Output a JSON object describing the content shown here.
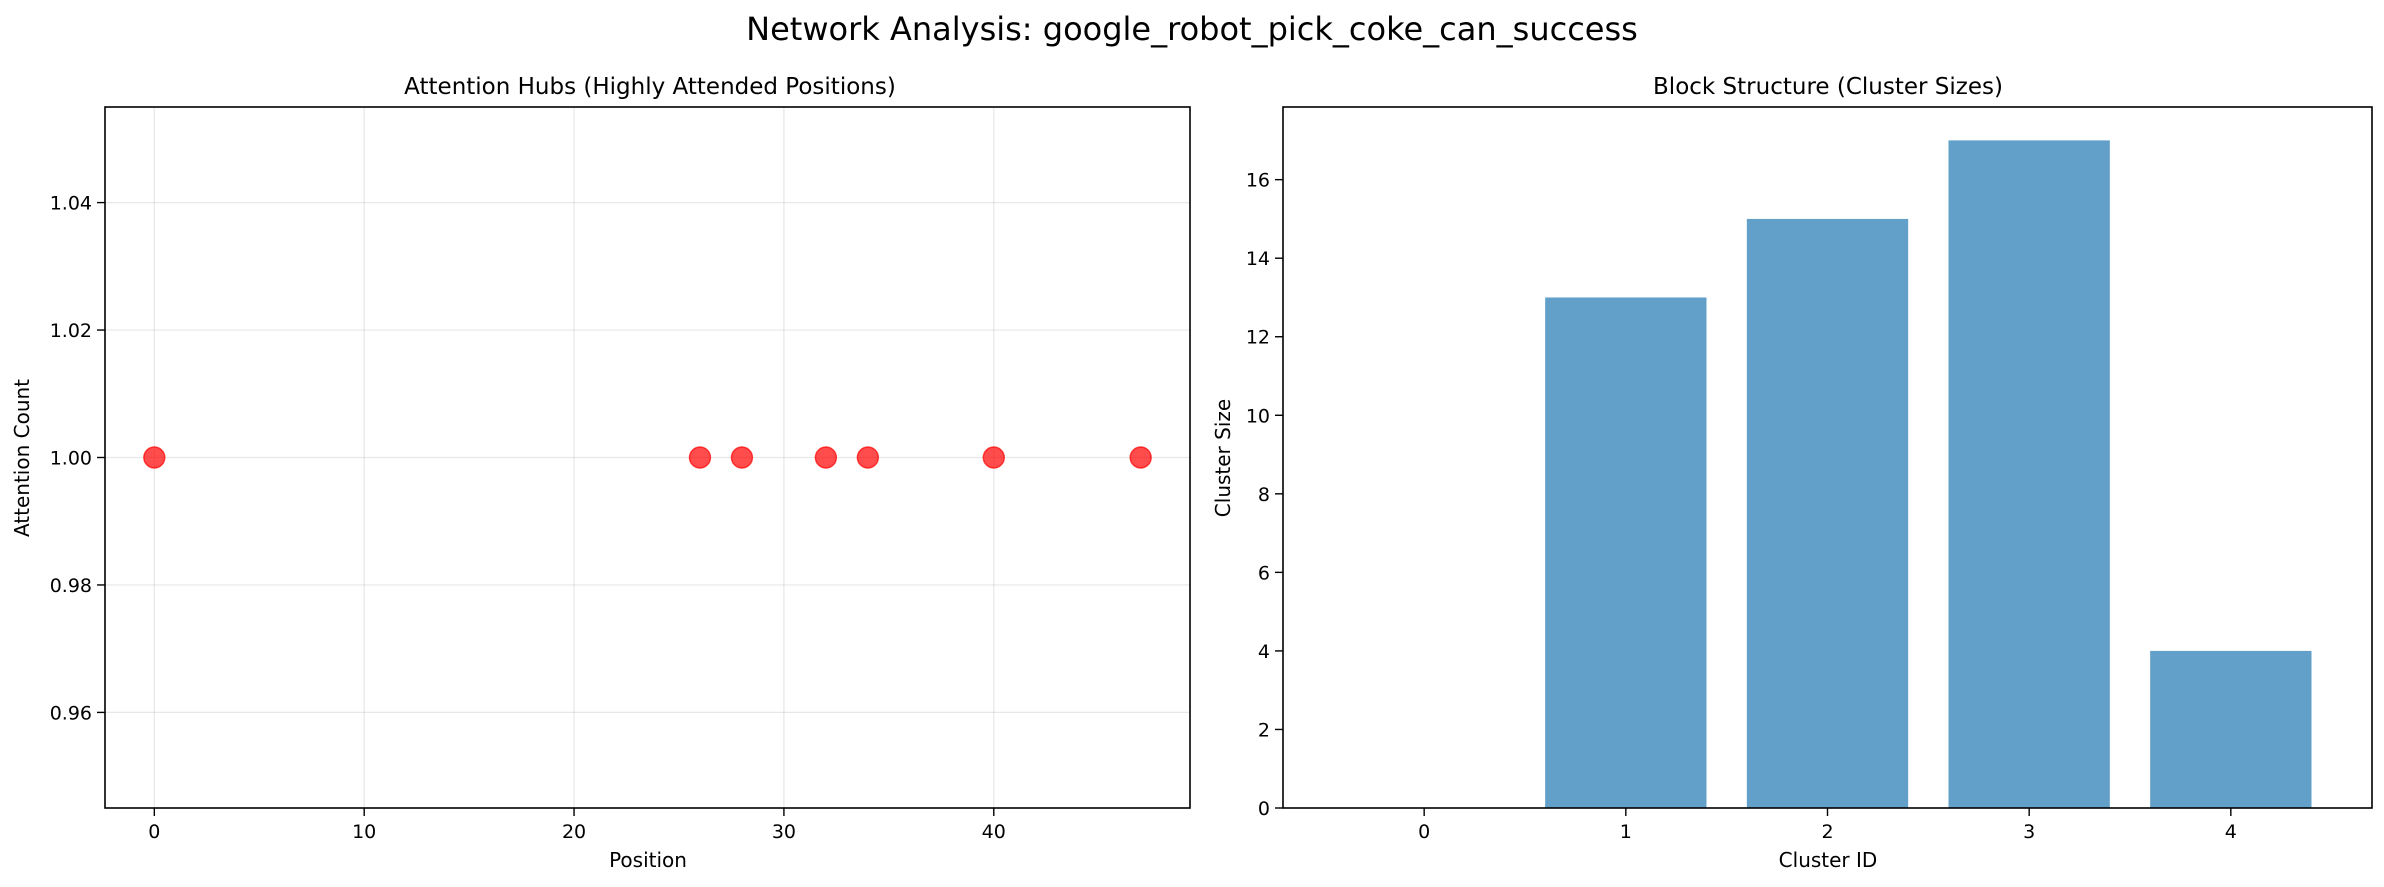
{
  "figure": {
    "suptitle": "Network Analysis: google_robot_pick_coke_can_success"
  },
  "chart_data": [
    {
      "type": "scatter",
      "title": "Attention Hubs (Highly Attended Positions)",
      "xlabel": "Position",
      "ylabel": "Attention Count",
      "xlim": [
        -2.35,
        49.35
      ],
      "ylim": [
        0.945,
        1.055
      ],
      "xticks": [
        0,
        10,
        20,
        30,
        40
      ],
      "xtick_labels": [
        "0",
        "10",
        "20",
        "30",
        "40"
      ],
      "yticks": [
        0.96,
        0.98,
        1.0,
        1.02,
        1.04
      ],
      "ytick_labels": [
        "0.96",
        "0.98",
        "1.00",
        "1.02",
        "1.04"
      ],
      "grid": true,
      "marker_color": "#ff0000",
      "points": [
        {
          "x": 0,
          "y": 1.0
        },
        {
          "x": 26,
          "y": 1.0
        },
        {
          "x": 28,
          "y": 1.0
        },
        {
          "x": 32,
          "y": 1.0
        },
        {
          "x": 34,
          "y": 1.0
        },
        {
          "x": 40,
          "y": 1.0
        },
        {
          "x": 47,
          "y": 1.0
        }
      ]
    },
    {
      "type": "bar",
      "title": "Block Structure (Cluster Sizes)",
      "xlabel": "Cluster ID",
      "ylabel": "Cluster Size",
      "categories": [
        "0",
        "1",
        "2",
        "3",
        "4"
      ],
      "values": [
        0,
        13,
        15,
        17,
        4
      ],
      "ylim": [
        0,
        17.85
      ],
      "yticks": [
        0,
        2,
        4,
        6,
        8,
        10,
        12,
        14,
        16
      ],
      "ytick_labels": [
        "0",
        "2",
        "4",
        "6",
        "8",
        "10",
        "12",
        "14",
        "16"
      ],
      "grid": false,
      "bar_color": "#1f77b4"
    }
  ]
}
